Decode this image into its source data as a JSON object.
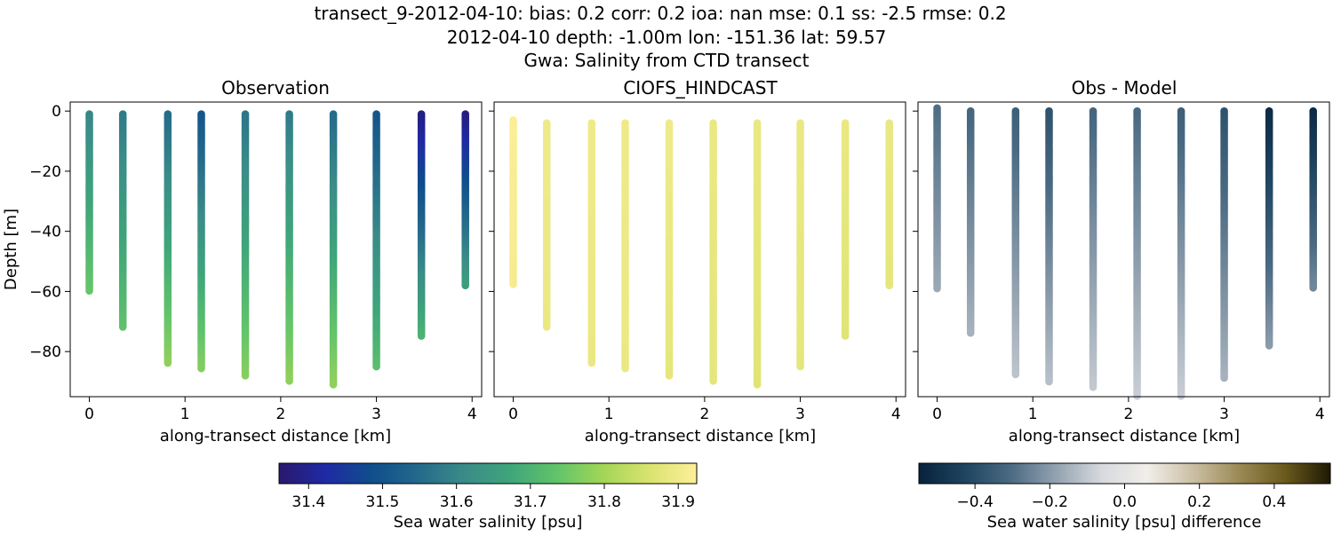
{
  "figure": {
    "title_lines": [
      "transect_9-2012-04-10: bias: 0.2  corr: 0.2  ioa: nan  mse: 0.1  ss: -2.5  rmse: 0.2",
      "2012-04-10 depth: -1.00m lon: -151.36 lat: 59.57",
      "Gwa: Salinity from CTD transect"
    ]
  },
  "chart_data": [
    {
      "type": "scatter",
      "title": "Observation",
      "xlabel": "along-transect distance [km]",
      "ylabel": "Depth [m]",
      "xlim": [
        -0.2,
        4.1
      ],
      "ylim": [
        -95,
        3
      ],
      "xticks": [
        0,
        1,
        2,
        3,
        4
      ],
      "xtick_labels": [
        "0",
        "1",
        "2",
        "3",
        "4"
      ],
      "yticks": [
        0,
        -20,
        -40,
        -60,
        -80
      ],
      "ytick_labels": [
        "0",
        "−20",
        "−40",
        "−60",
        "−80"
      ],
      "colormap": "haline",
      "profiles": [
        {
          "x": 0.0,
          "top": -1,
          "bottom": -60,
          "surface": 31.6,
          "deep": 31.74
        },
        {
          "x": 0.35,
          "top": -1,
          "bottom": -72,
          "surface": 31.58,
          "deep": 31.73
        },
        {
          "x": 0.82,
          "top": -1,
          "bottom": -84,
          "surface": 31.55,
          "deep": 31.78
        },
        {
          "x": 1.17,
          "top": -1,
          "bottom": -86,
          "surface": 31.5,
          "deep": 31.77
        },
        {
          "x": 1.63,
          "top": -1,
          "bottom": -88,
          "surface": 31.57,
          "deep": 31.77
        },
        {
          "x": 2.09,
          "top": -1,
          "bottom": -90,
          "surface": 31.58,
          "deep": 31.78
        },
        {
          "x": 2.55,
          "top": -1,
          "bottom": -91,
          "surface": 31.55,
          "deep": 31.78
        },
        {
          "x": 3.0,
          "top": -1,
          "bottom": -85,
          "surface": 31.5,
          "deep": 31.72
        },
        {
          "x": 3.47,
          "top": -1,
          "bottom": -75,
          "surface": 31.38,
          "deep": 31.7
        },
        {
          "x": 3.93,
          "top": -1,
          "bottom": -58,
          "surface": 31.38,
          "deep": 31.65
        }
      ]
    },
    {
      "type": "scatter",
      "title": "CIOFS_HINDCAST",
      "xlabel": "along-transect distance [km]",
      "xlim": [
        -0.2,
        4.1
      ],
      "ylim": [
        -95,
        3
      ],
      "xticks": [
        0,
        1,
        2,
        3,
        4
      ],
      "xtick_labels": [
        "0",
        "1",
        "2",
        "3",
        "4"
      ],
      "yticks": [
        0,
        -20,
        -40,
        -60,
        -80
      ],
      "colormap": "haline",
      "profiles": [
        {
          "x": 0.0,
          "top": -3,
          "bottom": -58,
          "surface": 31.92,
          "deep": 31.91
        },
        {
          "x": 0.35,
          "top": -4,
          "bottom": -72,
          "surface": 31.9,
          "deep": 31.89
        },
        {
          "x": 0.82,
          "top": -4,
          "bottom": -84,
          "surface": 31.9,
          "deep": 31.89
        },
        {
          "x": 1.17,
          "top": -4,
          "bottom": -86,
          "surface": 31.9,
          "deep": 31.89
        },
        {
          "x": 1.63,
          "top": -4,
          "bottom": -88,
          "surface": 31.9,
          "deep": 31.88
        },
        {
          "x": 2.09,
          "top": -4,
          "bottom": -90,
          "surface": 31.89,
          "deep": 31.88
        },
        {
          "x": 2.55,
          "top": -4,
          "bottom": -91,
          "surface": 31.89,
          "deep": 31.87
        },
        {
          "x": 3.0,
          "top": -4,
          "bottom": -85,
          "surface": 31.89,
          "deep": 31.88
        },
        {
          "x": 3.47,
          "top": -4,
          "bottom": -75,
          "surface": 31.89,
          "deep": 31.87
        },
        {
          "x": 3.93,
          "top": -4,
          "bottom": -58,
          "surface": 31.89,
          "deep": 31.88
        }
      ]
    },
    {
      "type": "scatter",
      "title": "Obs - Model",
      "xlabel": "along-transect distance [km]",
      "xlim": [
        -0.2,
        4.1
      ],
      "ylim": [
        -95,
        3
      ],
      "xticks": [
        0,
        1,
        2,
        3,
        4
      ],
      "xtick_labels": [
        "0",
        "1",
        "2",
        "3",
        "4"
      ],
      "yticks": [
        0,
        -20,
        -40,
        -60,
        -80
      ],
      "colormap": "diff",
      "profiles": [
        {
          "x": 0.0,
          "top": 1,
          "bottom": -59,
          "surface": -0.3,
          "deep": -0.17
        },
        {
          "x": 0.35,
          "top": 0,
          "bottom": -74,
          "surface": -0.32,
          "deep": -0.15
        },
        {
          "x": 0.82,
          "top": 0,
          "bottom": -88,
          "surface": -0.34,
          "deep": -0.11
        },
        {
          "x": 1.17,
          "top": 0,
          "bottom": -90,
          "surface": -0.38,
          "deep": -0.12
        },
        {
          "x": 1.63,
          "top": 0,
          "bottom": -92,
          "surface": -0.32,
          "deep": -0.1
        },
        {
          "x": 2.09,
          "top": 0,
          "bottom": -95,
          "surface": -0.31,
          "deep": -0.09
        },
        {
          "x": 2.55,
          "top": 0,
          "bottom": -95,
          "surface": -0.34,
          "deep": -0.09
        },
        {
          "x": 3.0,
          "top": 0,
          "bottom": -89,
          "surface": -0.38,
          "deep": -0.15
        },
        {
          "x": 3.47,
          "top": 0,
          "bottom": -78,
          "surface": -0.52,
          "deep": -0.2
        },
        {
          "x": 3.93,
          "top": 0,
          "bottom": -59,
          "surface": -0.52,
          "deep": -0.24
        }
      ]
    }
  ],
  "colorbars": [
    {
      "label": "Sea water salinity [psu]",
      "range": [
        31.36,
        31.925
      ],
      "ticks": [
        31.4,
        31.5,
        31.6,
        31.7,
        31.8,
        31.9
      ],
      "tick_labels": [
        "31.4",
        "31.5",
        "31.6",
        "31.7",
        "31.8",
        "31.9"
      ],
      "colormap": "haline"
    },
    {
      "label": "Sea water salinity [psu] difference",
      "range": [
        -0.55,
        0.55
      ],
      "ticks": [
        -0.4,
        -0.2,
        0.0,
        0.2,
        0.4
      ],
      "tick_labels": [
        "−0.4",
        "−0.2",
        "0.0",
        "0.2",
        "0.4"
      ],
      "colormap": "diff"
    }
  ],
  "colormaps": {
    "haline": [
      "#2a186c",
      "#1f2aa5",
      "#0f4e8b",
      "#24698b",
      "#3a8c88",
      "#3fa67a",
      "#62c46a",
      "#a3d656",
      "#dbe370",
      "#fdef9a"
    ],
    "diff": [
      "#07223d",
      "#1e4460",
      "#4a6a82",
      "#93a2b0",
      "#d7dade",
      "#f1eeea",
      "#cbbfa4",
      "#9c8a55",
      "#6b5a1d",
      "#1d1a05"
    ]
  }
}
